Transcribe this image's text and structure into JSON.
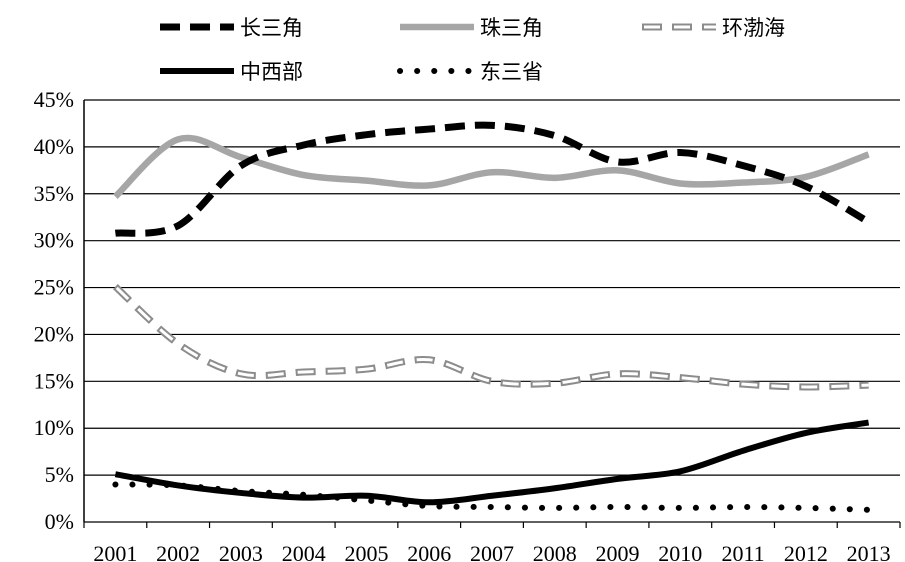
{
  "chart_data": {
    "type": "line",
    "title": "",
    "xlabel": "",
    "ylabel": "",
    "x": [
      "2001",
      "2002",
      "2003",
      "2004",
      "2005",
      "2006",
      "2007",
      "2008",
      "2009",
      "2010",
      "2011",
      "2012",
      "2013"
    ],
    "ylim": [
      0,
      45
    ],
    "yticks": [
      "0%",
      "5%",
      "10%",
      "15%",
      "20%",
      "25%",
      "30%",
      "35%",
      "40%",
      "45%"
    ],
    "grid": true,
    "legend_position": "top",
    "series": [
      {
        "name": "长三角",
        "color": "#000000",
        "style": "dashed",
        "values": [
          30.8,
          31.6,
          38.0,
          40.2,
          41.3,
          41.9,
          42.3,
          41.2,
          38.4,
          39.4,
          38.0,
          35.8,
          32.0
        ]
      },
      {
        "name": "珠三角",
        "color": "#a6a6a6",
        "style": "solid",
        "values": [
          34.7,
          40.8,
          38.9,
          37.0,
          36.4,
          35.9,
          37.3,
          36.7,
          37.5,
          36.1,
          36.2,
          36.8,
          39.2
        ]
      },
      {
        "name": "环渤海",
        "color": "#8c8c8c",
        "style": "hollow-dashed",
        "values": [
          25.1,
          19.0,
          15.8,
          16.0,
          16.3,
          17.3,
          15.0,
          14.8,
          15.8,
          15.4,
          14.7,
          14.4,
          14.6
        ]
      },
      {
        "name": "中西部",
        "color": "#000000",
        "style": "solid",
        "values": [
          5.1,
          3.9,
          3.1,
          2.6,
          2.8,
          2.1,
          2.8,
          3.6,
          4.6,
          5.4,
          7.6,
          9.5,
          10.6
        ]
      },
      {
        "name": "东三省",
        "color": "#000000",
        "style": "dotted",
        "values": [
          4.0,
          3.9,
          3.3,
          2.9,
          2.3,
          1.7,
          1.6,
          1.5,
          1.6,
          1.5,
          1.6,
          1.5,
          1.3
        ]
      }
    ]
  }
}
